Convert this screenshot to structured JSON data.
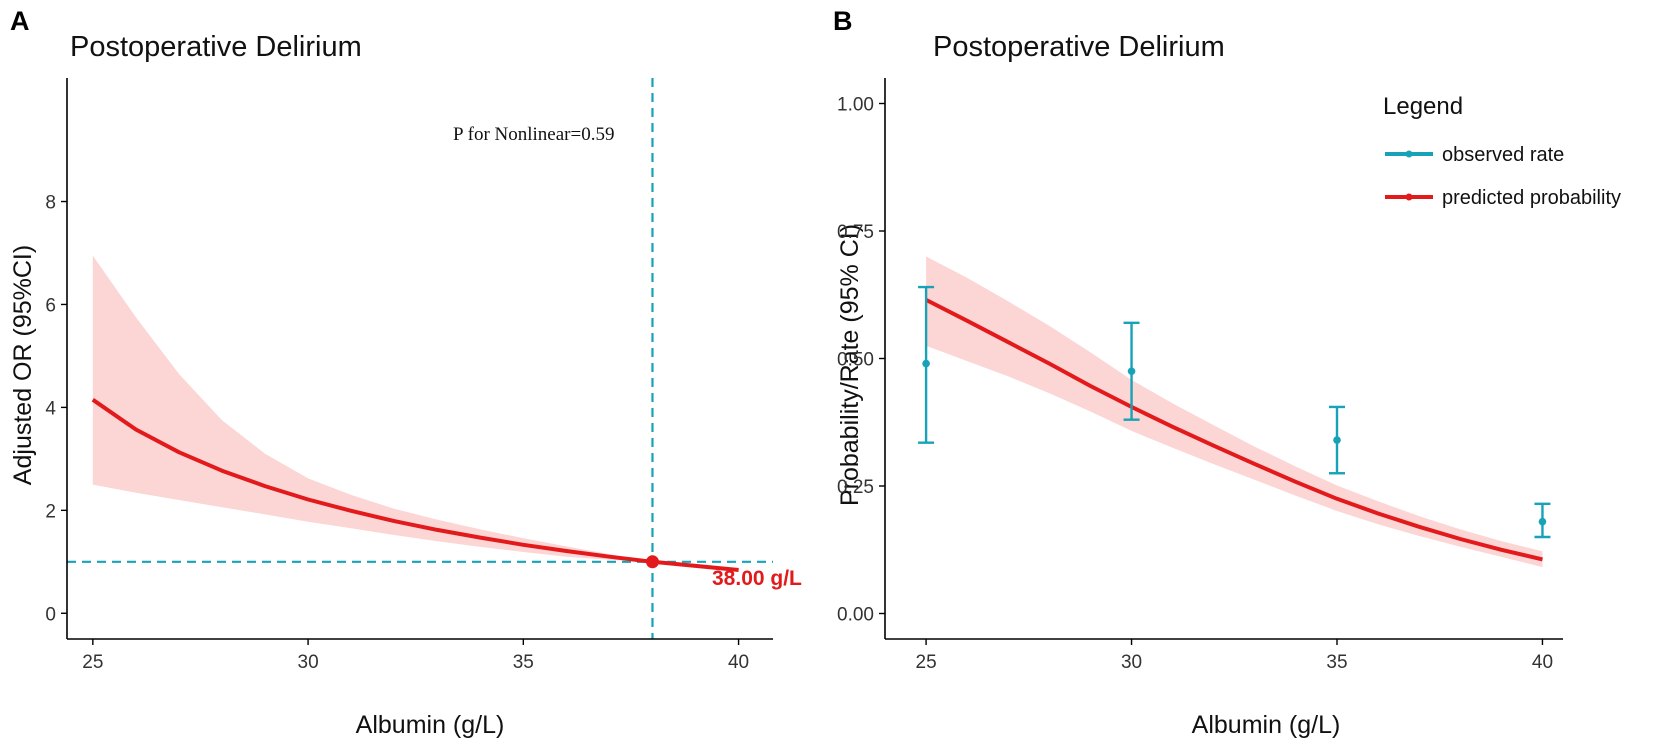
{
  "colors": {
    "curve": "#e31a1c",
    "ci_fill": "#fcd5d5",
    "ref": "#17a2b8",
    "observed": "#17a2b8",
    "axis": "#000000"
  },
  "chart_data": [
    {
      "panel": "A",
      "type": "line",
      "title": "Postoperative Delirium",
      "xlabel": "Albumin (g/L)",
      "ylabel": "Adjusted OR (95%CI)",
      "xlim": [
        24.4,
        40.8
      ],
      "ylim": [
        -0.5,
        10.4
      ],
      "xticks": [
        25,
        30,
        35,
        40
      ],
      "yticks": [
        0,
        2,
        4,
        6,
        8
      ],
      "annotation": "P for Nonlinear=0.59",
      "reference": {
        "x": 38,
        "y": 1,
        "label": "38.00 g/L"
      },
      "series": [
        {
          "name": "OR",
          "x": [
            25,
            26,
            27,
            28,
            29,
            30,
            31,
            32,
            33,
            34,
            35,
            36,
            37,
            38,
            39,
            40
          ],
          "y": [
            4.15,
            3.57,
            3.13,
            2.77,
            2.47,
            2.21,
            1.99,
            1.79,
            1.62,
            1.47,
            1.33,
            1.21,
            1.1,
            1.0,
            0.92,
            0.84
          ]
        },
        {
          "name": "lower",
          "x": [
            25,
            26,
            27,
            28,
            29,
            30,
            31,
            32,
            33,
            34,
            35,
            36,
            37,
            38,
            39,
            40
          ],
          "y": [
            2.5,
            2.34,
            2.2,
            2.06,
            1.92,
            1.78,
            1.65,
            1.52,
            1.4,
            1.29,
            1.19,
            1.1,
            1.04,
            1.0,
            0.9,
            0.81
          ]
        },
        {
          "name": "upper",
          "x": [
            25,
            26,
            27,
            28,
            29,
            30,
            31,
            32,
            33,
            34,
            35,
            36,
            37,
            38,
            39,
            40
          ],
          "y": [
            6.95,
            5.75,
            4.65,
            3.75,
            3.1,
            2.62,
            2.3,
            2.03,
            1.82,
            1.63,
            1.46,
            1.3,
            1.15,
            1.0,
            0.94,
            0.88
          ]
        }
      ]
    },
    {
      "panel": "B",
      "type": "line",
      "title": "Postoperative Delirium",
      "xlabel": "Albumin (g/L)",
      "ylabel": "Probability/Rate (95% CI)",
      "xlim": [
        24.0,
        40.5
      ],
      "ylim": [
        -0.05,
        1.05
      ],
      "xticks": [
        25,
        30,
        35,
        40
      ],
      "yticks": [
        0.0,
        0.25,
        0.5,
        0.75,
        1.0
      ],
      "ytick_labels": [
        "0.00",
        "0.25",
        "0.50",
        "0.75",
        "1.00"
      ],
      "legend": {
        "title": "Legend",
        "position": "top-right",
        "entries": [
          "observed rate",
          "predicted probability"
        ]
      },
      "predicted": {
        "x": [
          25,
          26,
          27,
          28,
          29,
          30,
          31,
          32,
          33,
          34,
          35,
          36,
          37,
          38,
          39,
          40
        ],
        "y": [
          0.615,
          0.574,
          0.532,
          0.49,
          0.446,
          0.405,
          0.366,
          0.329,
          0.293,
          0.258,
          0.225,
          0.196,
          0.17,
          0.146,
          0.125,
          0.106
        ],
        "lower": [
          0.525,
          0.495,
          0.465,
          0.432,
          0.396,
          0.358,
          0.325,
          0.293,
          0.262,
          0.231,
          0.201,
          0.175,
          0.152,
          0.131,
          0.111,
          0.091
        ],
        "upper": [
          0.7,
          0.658,
          0.612,
          0.564,
          0.512,
          0.458,
          0.412,
          0.369,
          0.327,
          0.288,
          0.251,
          0.22,
          0.191,
          0.165,
          0.142,
          0.122
        ]
      },
      "observed": [
        {
          "x": 25,
          "rate": 0.49,
          "lower": 0.335,
          "upper": 0.64
        },
        {
          "x": 30,
          "rate": 0.475,
          "lower": 0.38,
          "upper": 0.57
        },
        {
          "x": 35,
          "rate": 0.34,
          "lower": 0.275,
          "upper": 0.405
        },
        {
          "x": 40,
          "rate": 0.18,
          "lower": 0.15,
          "upper": 0.215
        }
      ]
    }
  ]
}
